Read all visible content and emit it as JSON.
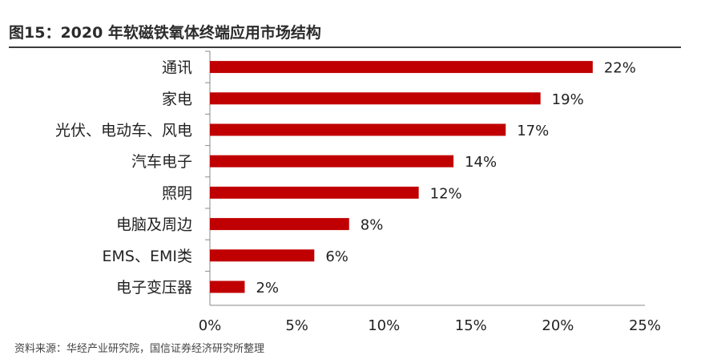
{
  "title": "图15：2020 年软磁铁氧体终端应用市场结构",
  "source": "资料来源：华经产业研究院，国信证券经济研究所整理",
  "chart_data": {
    "type": "bar",
    "orientation": "horizontal",
    "categories": [
      "通讯",
      "家电",
      "光伏、电动车、风电",
      "汽车电子",
      "照明",
      "电脑及周边",
      "EMS、EMI类",
      "电子变压器"
    ],
    "values": [
      22,
      19,
      17,
      14,
      12,
      8,
      6,
      2
    ],
    "value_labels": [
      "22%",
      "19%",
      "17%",
      "14%",
      "12%",
      "8%",
      "6%",
      "2%"
    ],
    "xlim": [
      0,
      25
    ],
    "xticks": [
      0,
      5,
      10,
      15,
      20,
      25
    ],
    "xtick_labels": [
      "0%",
      "5%",
      "10%",
      "15%",
      "20%",
      "25%"
    ],
    "bar_color": "#c00000",
    "grid": false
  }
}
